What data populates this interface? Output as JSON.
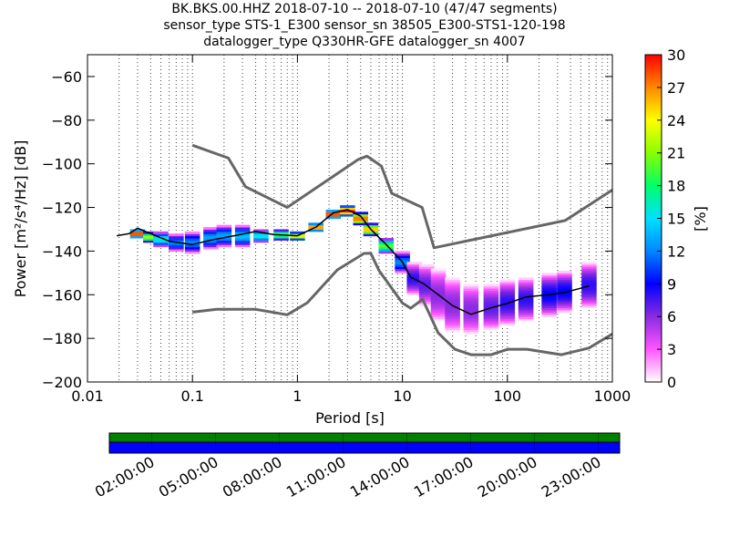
{
  "header": {
    "title_line1": "BK.BKS.00.HHZ   2018-07-10 -- 2018-07-10  (47/47 segments)",
    "title_line2": "sensor_type STS-1_E300 sensor_sn 38505_E300-STS1-120-198",
    "title_line3": "datalogger_type Q330HR-GFE datalogger_sn 4007"
  },
  "chart_data": {
    "type": "heatmap",
    "xlabel": "Period [s]",
    "ylabel": "Power [m²/s⁴/Hz] [dB]",
    "x_scale": "log",
    "xlim": [
      0.01,
      1000
    ],
    "ylim": [
      -200,
      -50
    ],
    "x_ticks": [
      0.01,
      0.1,
      1,
      10,
      100,
      1000
    ],
    "x_tick_labels": [
      "0.01",
      "0.1",
      "1",
      "10",
      "100",
      "1000"
    ],
    "y_ticks": [
      -200,
      -180,
      -160,
      -140,
      -120,
      -100,
      -80,
      -60
    ],
    "y_tick_labels": [
      "−200",
      "−180",
      "−160",
      "−140",
      "−120",
      "−100",
      "−80",
      "−60"
    ],
    "grid": "vertical dotted",
    "colorbar": {
      "label": "[%]",
      "min": 0,
      "max": 30,
      "ticks": [
        0,
        3,
        6,
        9,
        12,
        15,
        18,
        21,
        24,
        27,
        30
      ],
      "colormap": [
        "#ffffff",
        "#ff55ff",
        "#8a2be2",
        "#0000ff",
        "#0088ff",
        "#00e0ff",
        "#00ff66",
        "#88ff00",
        "#ffff00",
        "#ff8800",
        "#ff0000"
      ]
    },
    "noise_model_high": [
      [
        0.1,
        -91.5
      ],
      [
        0.22,
        -97.4
      ],
      [
        0.32,
        -110.5
      ],
      [
        0.8,
        -120
      ],
      [
        3.8,
        -98
      ],
      [
        4.6,
        -96.5
      ],
      [
        6.3,
        -101
      ],
      [
        7.9,
        -113.5
      ],
      [
        15.4,
        -120
      ],
      [
        20,
        -138.5
      ],
      [
        354.8,
        -126
      ],
      [
        1000,
        -112
      ]
    ],
    "noise_model_low": [
      [
        0.1,
        -168
      ],
      [
        0.17,
        -166.7
      ],
      [
        0.4,
        -166.7
      ],
      [
        0.8,
        -169.2
      ],
      [
        1.24,
        -163.7
      ],
      [
        2.4,
        -148.6
      ],
      [
        4.3,
        -141.1
      ],
      [
        5.0,
        -141
      ],
      [
        6.0,
        -149
      ],
      [
        10,
        -163.8
      ],
      [
        12,
        -166.2
      ],
      [
        15.6,
        -162.1
      ],
      [
        21.9,
        -177.5
      ],
      [
        31.6,
        -185
      ],
      [
        45,
        -187.5
      ],
      [
        70,
        -187.5
      ],
      [
        101,
        -185
      ],
      [
        154,
        -185
      ],
      [
        328,
        -187.5
      ],
      [
        600,
        -184.4
      ],
      [
        1000,
        -178
      ]
    ],
    "mode_curve": [
      [
        0.019,
        -133
      ],
      [
        0.025,
        -132
      ],
      [
        0.03,
        -129.5
      ],
      [
        0.04,
        -132
      ],
      [
        0.06,
        -135.5
      ],
      [
        0.1,
        -137
      ],
      [
        0.15,
        -135
      ],
      [
        0.25,
        -133
      ],
      [
        0.4,
        -131
      ],
      [
        0.6,
        -132.5
      ],
      [
        1,
        -133
      ],
      [
        1.5,
        -129
      ],
      [
        2.2,
        -122.5
      ],
      [
        3,
        -121
      ],
      [
        4,
        -124
      ],
      [
        5,
        -130
      ],
      [
        7,
        -137
      ],
      [
        10,
        -145
      ],
      [
        12,
        -152
      ],
      [
        16,
        -155
      ],
      [
        22,
        -160
      ],
      [
        30,
        -165
      ],
      [
        45,
        -169
      ],
      [
        70,
        -166
      ],
      [
        100,
        -164
      ],
      [
        150,
        -161
      ],
      [
        250,
        -160
      ],
      [
        350,
        -159
      ],
      [
        600,
        -156
      ]
    ],
    "density_columns": [
      [
        0.03,
        -130,
        -134,
        30
      ],
      [
        0.04,
        -131,
        -136,
        22
      ],
      [
        0.05,
        -131,
        -138,
        16
      ],
      [
        0.07,
        -132,
        -140,
        12
      ],
      [
        0.1,
        -131,
        -141,
        12
      ],
      [
        0.15,
        -129,
        -139,
        13
      ],
      [
        0.2,
        -128,
        -138,
        13
      ],
      [
        0.3,
        -128,
        -138,
        14
      ],
      [
        0.45,
        -130,
        -136,
        16
      ],
      [
        0.7,
        -130,
        -135,
        20
      ],
      [
        1.0,
        -131,
        -135,
        24
      ],
      [
        1.5,
        -127,
        -131,
        28
      ],
      [
        2.2,
        -121,
        -125,
        30
      ],
      [
        3.0,
        -119,
        -124,
        30
      ],
      [
        4.0,
        -122,
        -128,
        28
      ],
      [
        5.0,
        -127,
        -133,
        26
      ],
      [
        7.0,
        -134,
        -141,
        20
      ],
      [
        10.0,
        -140,
        -150,
        12
      ],
      [
        13.0,
        -145,
        -160,
        8
      ],
      [
        17.0,
        -146,
        -165,
        7
      ],
      [
        22.0,
        -148,
        -172,
        6
      ],
      [
        30.0,
        -152,
        -177,
        6
      ],
      [
        45.0,
        -155,
        -178,
        6
      ],
      [
        70.0,
        -155,
        -176,
        7
      ],
      [
        100.0,
        -153,
        -174,
        8
      ],
      [
        150.0,
        -152,
        -172,
        8
      ],
      [
        250.0,
        -150,
        -170,
        9
      ],
      [
        350.0,
        -149,
        -168,
        9
      ],
      [
        600.0,
        -145,
        -166,
        8
      ]
    ]
  },
  "timeline": {
    "labels": [
      "02:00:00",
      "05:00:00",
      "08:00:00",
      "11:00:00",
      "14:00:00",
      "17:00:00",
      "20:00:00",
      "23:00:00"
    ],
    "top_color": "#008000",
    "bottom_color": "#0000ff"
  }
}
